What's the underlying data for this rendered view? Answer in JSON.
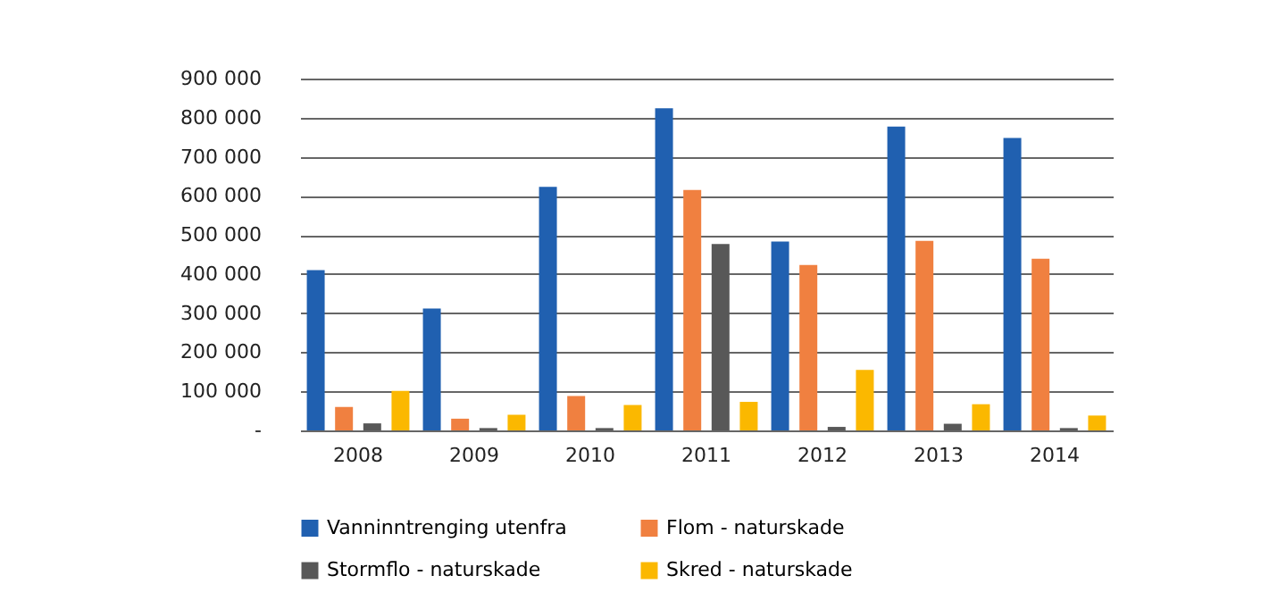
{
  "chart_data": {
    "type": "bar",
    "categories": [
      "2008",
      "2009",
      "2010",
      "2011",
      "2012",
      "2013",
      "2014"
    ],
    "series": [
      {
        "name": "Vanninntrenging utenfra",
        "color": "#2060b0",
        "values": [
          410000,
          312000,
          623000,
          824000,
          483000,
          777000,
          748000
        ]
      },
      {
        "name": "Flom - naturskade",
        "color": "#f08040",
        "values": [
          60000,
          30000,
          88000,
          615000,
          423000,
          485000,
          439000
        ]
      },
      {
        "name": "Stormflo - naturskade",
        "color": "#585858",
        "values": [
          18000,
          6000,
          6000,
          477000,
          9000,
          17000,
          6000
        ]
      },
      {
        "name": "Skred - naturskade",
        "color": "#fbb800",
        "values": [
          101000,
          40000,
          65000,
          73000,
          155000,
          67000,
          38000
        ]
      }
    ],
    "ylim": [
      0,
      900000
    ],
    "yticks": [
      {
        "value": 0,
        "label": "-"
      },
      {
        "value": 100000,
        "label": "100 000"
      },
      {
        "value": 200000,
        "label": "200 000"
      },
      {
        "value": 300000,
        "label": "300 000"
      },
      {
        "value": 400000,
        "label": "400 000"
      },
      {
        "value": 500000,
        "label": "500 000"
      },
      {
        "value": 600000,
        "label": "600 000"
      },
      {
        "value": 700000,
        "label": "700 000"
      },
      {
        "value": 800000,
        "label": "800 000"
      },
      {
        "value": 900000,
        "label": "900 000"
      }
    ],
    "grid": "y",
    "legend": "bottom"
  }
}
